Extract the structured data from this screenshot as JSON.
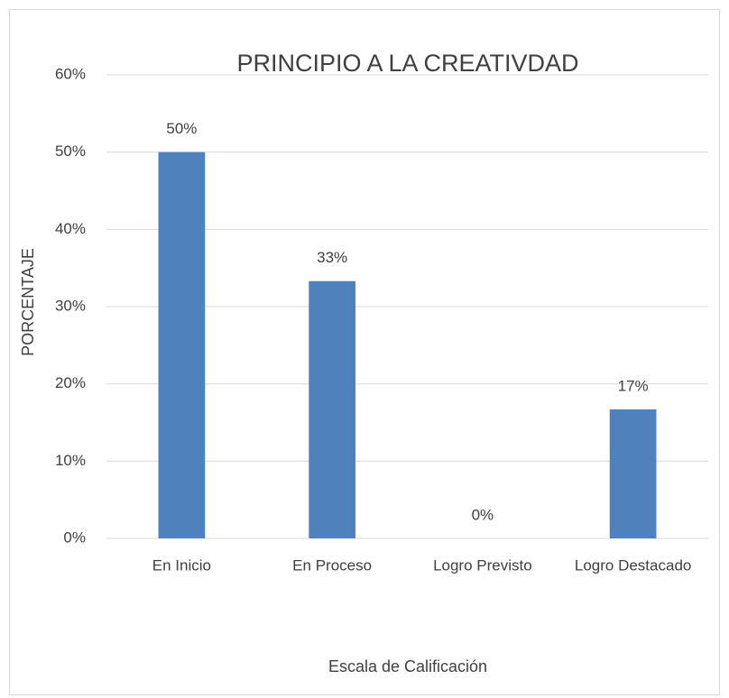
{
  "chart_data": {
    "type": "bar",
    "title": "PRINCIPIO A LA CREATIVDAD",
    "x_label": "Escala de Calificación",
    "y_label": "PORCENTAJE",
    "categories": [
      "En Inicio",
      "En Proceso",
      "Logro Previsto",
      "Logro Destacado"
    ],
    "values": [
      50,
      33.3,
      0,
      16.7
    ],
    "value_labels": [
      "50%",
      "33%",
      "0%",
      "17%"
    ],
    "color": "#4f81bd",
    "ylim": [
      0,
      60
    ],
    "yticks": [
      {
        "value": 0,
        "label": "0%"
      },
      {
        "value": 10,
        "label": "10%"
      },
      {
        "value": 20,
        "label": "20%"
      },
      {
        "value": 30,
        "label": "30%"
      },
      {
        "value": 40,
        "label": "40%"
      },
      {
        "value": 50,
        "label": "50%"
      },
      {
        "value": 60,
        "label": "60%"
      }
    ],
    "grid": true
  }
}
